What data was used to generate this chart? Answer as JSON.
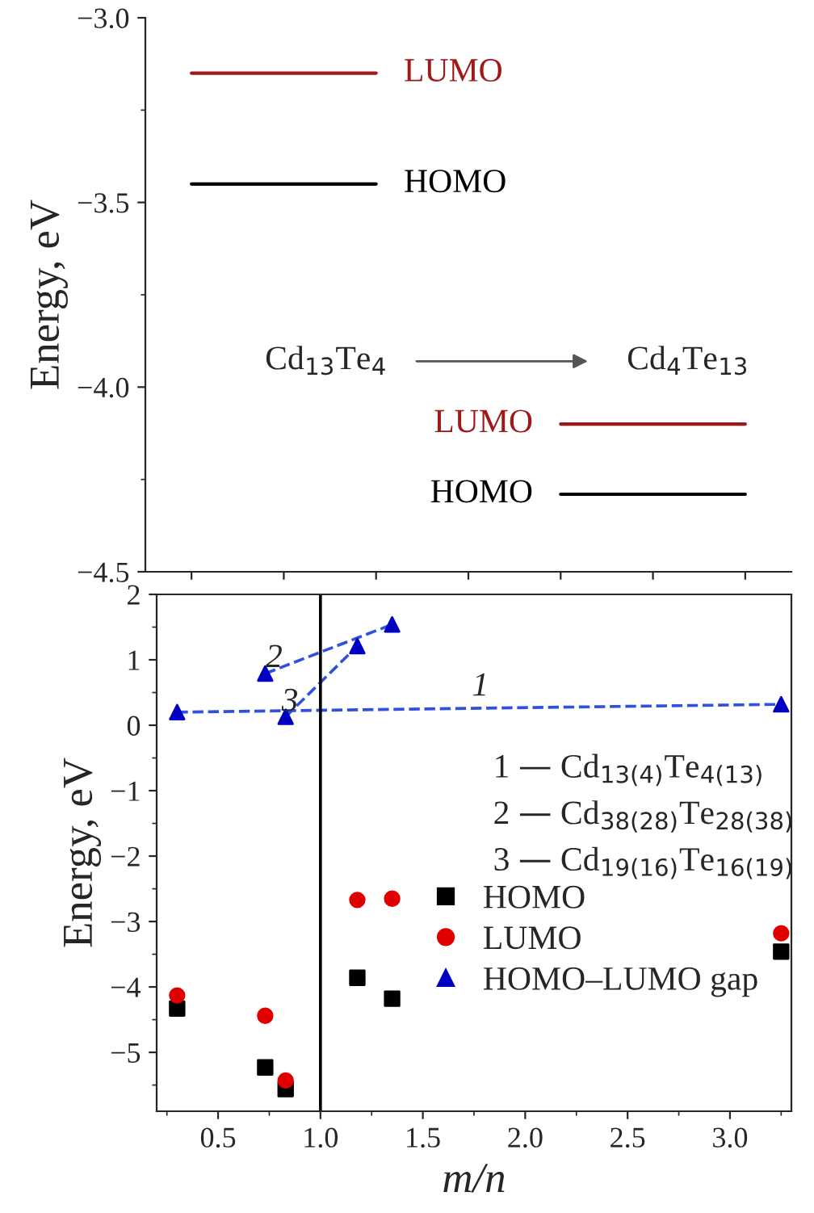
{
  "chart_data": [
    {
      "type": "line",
      "ylabel": "Energy, eV",
      "ylim": [
        -4.5,
        -3.0
      ],
      "yticks": [
        {
          "value": -3.0,
          "label": "−3.0"
        },
        {
          "value": -3.5,
          "label": "−3.5"
        },
        {
          "value": -4.0,
          "label": "−4.0"
        },
        {
          "value": -4.5,
          "label": "−4.5"
        }
      ],
      "categories": [
        null,
        null,
        null,
        null,
        null,
        null,
        null
      ],
      "tick_labels": "y",
      "grid": false,
      "legend": false,
      "marker": "none",
      "line_style": "solid",
      "series": [
        {
          "name": "LUMO",
          "color": "#a01818",
          "values": [
            -3.15,
            -3.15,
            -3.15,
            null,
            null,
            null,
            null
          ]
        },
        {
          "name": "HOMO",
          "color": "#000000",
          "values": [
            -3.45,
            -3.45,
            -3.45,
            null,
            null,
            null,
            null
          ]
        },
        {
          "name": "LUMO",
          "color": "#a01818",
          "values": [
            null,
            null,
            null,
            null,
            -4.1,
            -4.1,
            -4.1
          ]
        },
        {
          "name": "HOMO",
          "color": "#000000",
          "values": [
            null,
            null,
            null,
            null,
            -4.29,
            -4.29,
            -4.29
          ]
        }
      ],
      "annotations": [
        "Cd$_{13}$Te$_{4}$",
        "Cd$_{4}$Te$_{13}$"
      ]
    },
    {
      "type": "scatter",
      "xlabel": "m/n",
      "ylabel": "Energy, eV",
      "xlim": [
        0.2,
        3.3
      ],
      "ylim": [
        -5.9,
        2
      ],
      "xticks": [
        0.5,
        {
          "value": 1,
          "label": "1.0"
        },
        1.5,
        {
          "value": 2,
          "label": "2.0"
        },
        2.5,
        {
          "value": 3,
          "label": "3.0"
        }
      ],
      "yticks": [
        {
          "value": -5,
          "label": "−5"
        },
        {
          "value": -4,
          "label": "−4"
        },
        {
          "value": -3,
          "label": "−3"
        },
        {
          "value": -2,
          "label": "−2"
        },
        {
          "value": -1,
          "label": "−1"
        },
        0,
        1,
        2
      ],
      "grid": false,
      "legend": "right",
      "ref_lines": [
        {
          "axis": "x",
          "value": 1.0,
          "color": "#000000",
          "line_style": "solid"
        }
      ],
      "series": [
        {
          "name": "HOMO",
          "type": "scatter",
          "marker": "square",
          "color": "#000000",
          "x": [
            0.3,
            0.73,
            0.83,
            1.18,
            1.35,
            3.25
          ],
          "values": [
            -4.33,
            -5.23,
            -5.56,
            -3.86,
            -4.18,
            -3.46
          ]
        },
        {
          "name": "LUMO",
          "type": "scatter",
          "marker": "circle",
          "color": "#e00000",
          "x": [
            0.3,
            0.73,
            0.83,
            1.18,
            1.35,
            3.25
          ],
          "values": [
            -4.13,
            -4.44,
            -5.43,
            -2.67,
            -2.65,
            -3.18
          ]
        },
        {
          "name": "HOMO–LUMO gap",
          "type": "scatter",
          "marker": "triangle",
          "color": "#0000c0",
          "x": [
            0.3,
            0.73,
            0.83,
            1.18,
            1.35,
            3.25
          ],
          "values": [
            0.2,
            0.79,
            0.13,
            1.21,
            1.54,
            0.32
          ]
        },
        {
          "type": "line",
          "marker": "none",
          "line_style": "dashed",
          "color": "#3050e0",
          "x": [
            0.3,
            3.25
          ],
          "values": [
            0.2,
            0.32
          ]
        },
        {
          "type": "line",
          "marker": "none",
          "line_style": "dashed",
          "color": "#3050e0",
          "x": [
            0.73,
            1.35
          ],
          "values": [
            0.79,
            1.54
          ]
        },
        {
          "type": "line",
          "marker": "none",
          "line_style": "dashed",
          "color": "#3050e0",
          "x": [
            0.83,
            1.18
          ],
          "values": [
            0.13,
            1.21
          ]
        }
      ],
      "annotations": [
        "1",
        "2",
        "3",
        "1 — Cd$_{13(4)}$Te$_{4(13)}$",
        "2 — Cd$_{38(28)}$Te$_{28(38)}$",
        "3 — Cd$_{19(16)}$Te$_{16(19)}$"
      ]
    }
  ]
}
